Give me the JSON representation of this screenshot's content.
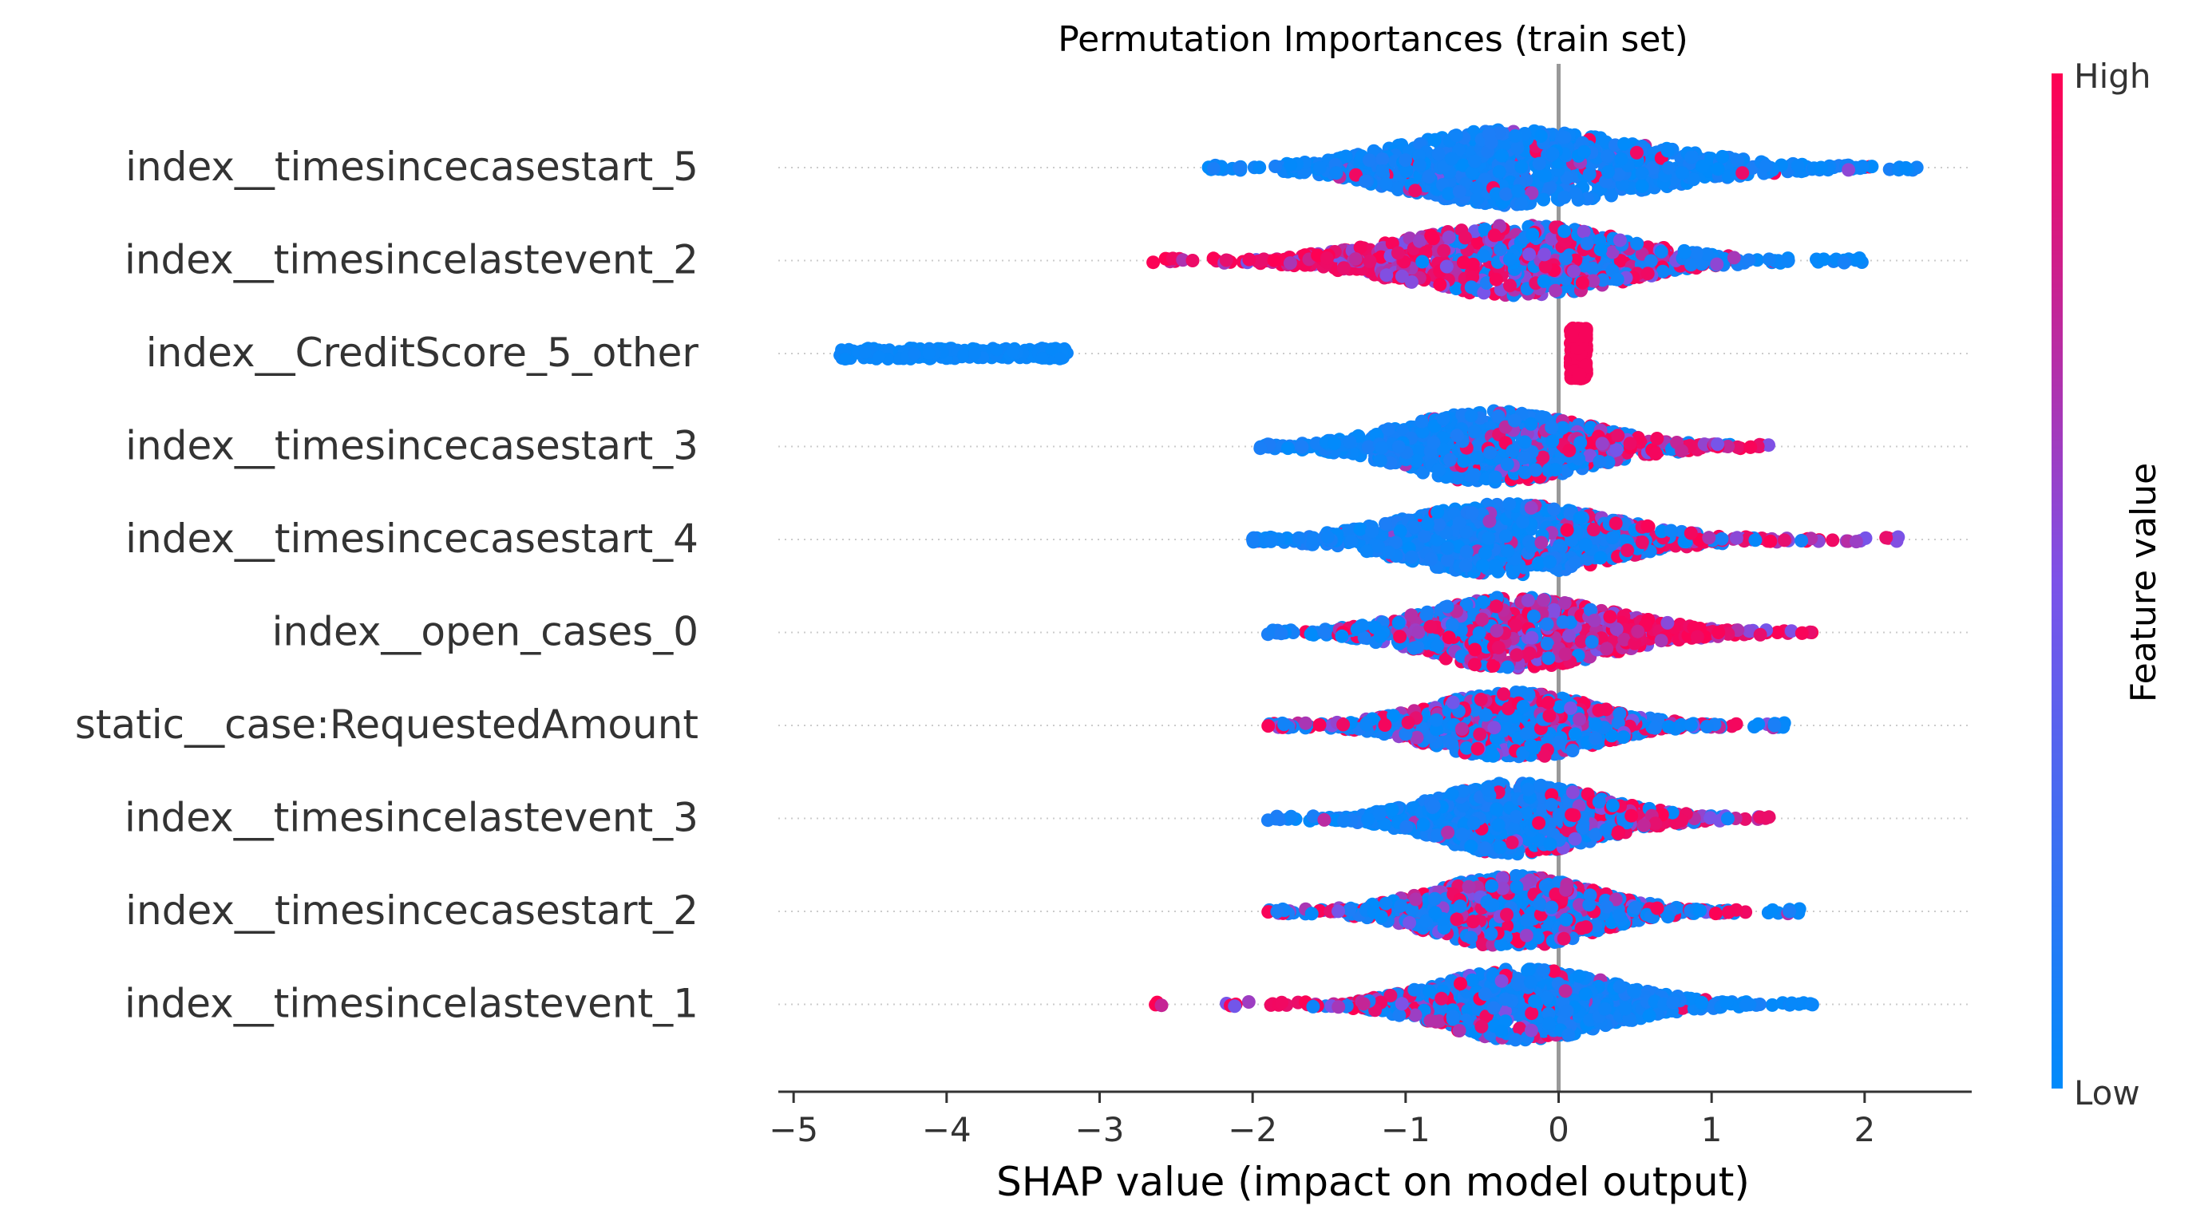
{
  "chart_data": {
    "type": "scatter",
    "subtype": "beeswarm",
    "title": "Permutation Importances (train set)",
    "xlabel": "SHAP value (impact on model output)",
    "ylabel": "",
    "xlim": [
      -5.1,
      2.7
    ],
    "xticks": [
      -5,
      -4,
      -3,
      -2,
      -1,
      0,
      1,
      2
    ],
    "xtick_labels": [
      "−5",
      "−4",
      "−3",
      "−2",
      "−1",
      "0",
      "1",
      "2"
    ],
    "grid": "dotted horizontal lines per feature",
    "legend": {
      "type": "colorbar",
      "placement": "right",
      "label": "Feature value",
      "high_label": "High",
      "low_label": "Low",
      "low_color": "#008bfb",
      "mid_color": "#7c52e8",
      "high_color": "#ff0052"
    },
    "zero_line_color": "#999999",
    "features": [
      {
        "name": "index__timesincecasestart_5",
        "min": -2.3,
        "max": 2.35,
        "center": -0.35,
        "spread_left": 0.9,
        "spread_right": 1.2,
        "max_height": 0.48,
        "high_frac": 0.05,
        "high_side": 0
      },
      {
        "name": "index__timesincelastevent_2",
        "min": -2.65,
        "max": 2.0,
        "center": -0.25,
        "spread_left": 1.0,
        "spread_right": 0.9,
        "max_height": 0.45,
        "high_frac": 0.55,
        "high_side": -1
      },
      {
        "name": "index__CreditScore_5_other",
        "min": -4.7,
        "max": -3.2,
        "center": 0.15,
        "spread_left": 0.05,
        "spread_right": 0.05,
        "max_height": 0.35,
        "high_frac": 0.0,
        "high_side": 0,
        "cluster2": {
          "min": 0.08,
          "max": 0.18,
          "color": "high"
        }
      },
      {
        "name": "index__timesincecasestart_3",
        "min": -1.95,
        "max": 1.4,
        "center": -0.45,
        "spread_left": 0.75,
        "spread_right": 0.85,
        "max_height": 0.45,
        "high_frac": 0.15,
        "high_side": 1
      },
      {
        "name": "index__timesincecasestart_4",
        "min": -2.0,
        "max": 2.25,
        "center": -0.35,
        "spread_left": 0.85,
        "spread_right": 0.9,
        "max_height": 0.45,
        "high_frac": 0.1,
        "high_side": 1
      },
      {
        "name": "index__open_cases_0",
        "min": -1.9,
        "max": 1.75,
        "center": -0.3,
        "spread_left": 0.75,
        "spread_right": 0.85,
        "max_height": 0.45,
        "high_frac": 0.55,
        "high_side": 1
      },
      {
        "name": "static__case:RequestedAmount",
        "min": -1.9,
        "max": 1.5,
        "center": -0.3,
        "spread_left": 0.7,
        "spread_right": 0.7,
        "max_height": 0.42,
        "high_frac": 0.35,
        "high_side": 0
      },
      {
        "name": "index__timesincelastevent_3",
        "min": -1.9,
        "max": 1.45,
        "center": -0.3,
        "spread_left": 0.65,
        "spread_right": 0.75,
        "max_height": 0.45,
        "high_frac": 0.15,
        "high_side": 1
      },
      {
        "name": "index__timesincecasestart_2",
        "min": -1.9,
        "max": 1.6,
        "center": -0.3,
        "spread_left": 0.7,
        "spread_right": 0.7,
        "max_height": 0.45,
        "high_frac": 0.35,
        "high_side": 0
      },
      {
        "name": "index__timesincelastevent_1",
        "min": -2.7,
        "max": 1.7,
        "center": -0.25,
        "spread_left": 0.7,
        "spread_right": 0.8,
        "max_height": 0.45,
        "high_frac": 0.2,
        "high_side": -1
      }
    ]
  }
}
